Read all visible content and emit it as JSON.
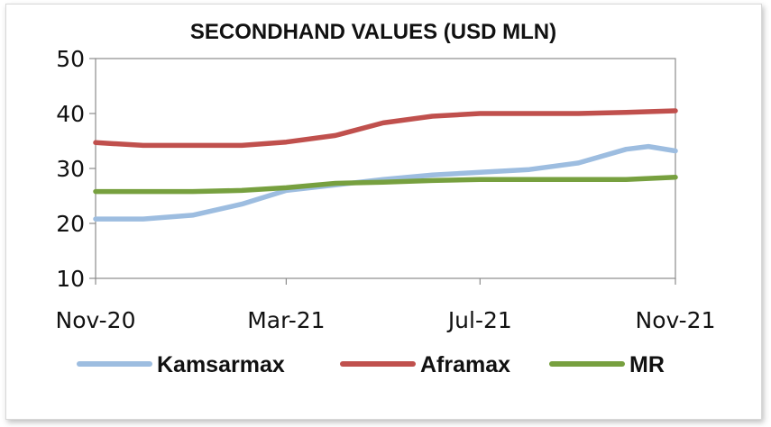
{
  "chart_data": {
    "type": "line",
    "title": "SECONDHAND VALUES (USD MLN)",
    "xlabel": "",
    "ylabel": "",
    "ylim": [
      10,
      50
    ],
    "yticks": [
      "10",
      "20",
      "30",
      "40",
      "50"
    ],
    "xticks": [
      "Nov-20",
      "Mar-21",
      "Jul-21",
      "Nov-21"
    ],
    "x_range": [
      "Nov-20",
      "Nov-21"
    ],
    "grid": false,
    "legend_position": "bottom",
    "series": [
      {
        "name": "Kamsarmax",
        "color": "#9dbde0",
        "points": [
          [
            "2020-11-01",
            20.8
          ],
          [
            "2020-12-01",
            20.8
          ],
          [
            "2021-01-01",
            21.5
          ],
          [
            "2021-02-01",
            23.5
          ],
          [
            "2021-03-01",
            26.0
          ],
          [
            "2021-04-01",
            27.0
          ],
          [
            "2021-05-01",
            28.0
          ],
          [
            "2021-06-01",
            28.8
          ],
          [
            "2021-07-01",
            29.3
          ],
          [
            "2021-08-01",
            29.8
          ],
          [
            "2021-09-01",
            31.0
          ],
          [
            "2021-10-01",
            33.5
          ],
          [
            "2021-10-15",
            34.0
          ],
          [
            "2021-11-01",
            33.2
          ]
        ]
      },
      {
        "name": "Aframax",
        "color": "#c0504d",
        "points": [
          [
            "2020-11-01",
            34.7
          ],
          [
            "2020-12-01",
            34.2
          ],
          [
            "2021-01-01",
            34.2
          ],
          [
            "2021-02-01",
            34.2
          ],
          [
            "2021-03-01",
            34.8
          ],
          [
            "2021-04-01",
            36.0
          ],
          [
            "2021-05-01",
            38.3
          ],
          [
            "2021-06-01",
            39.5
          ],
          [
            "2021-07-01",
            40.0
          ],
          [
            "2021-08-01",
            40.0
          ],
          [
            "2021-09-01",
            40.0
          ],
          [
            "2021-10-01",
            40.2
          ],
          [
            "2021-11-01",
            40.5
          ]
        ]
      },
      {
        "name": "MR",
        "color": "#77a03f",
        "points": [
          [
            "2020-11-01",
            25.8
          ],
          [
            "2020-12-01",
            25.8
          ],
          [
            "2021-01-01",
            25.8
          ],
          [
            "2021-02-01",
            26.0
          ],
          [
            "2021-03-01",
            26.5
          ],
          [
            "2021-04-01",
            27.3
          ],
          [
            "2021-05-01",
            27.5
          ],
          [
            "2021-06-01",
            27.8
          ],
          [
            "2021-07-01",
            28.0
          ],
          [
            "2021-08-01",
            28.0
          ],
          [
            "2021-09-01",
            28.0
          ],
          [
            "2021-10-01",
            28.0
          ],
          [
            "2021-11-01",
            28.4
          ]
        ]
      }
    ]
  }
}
